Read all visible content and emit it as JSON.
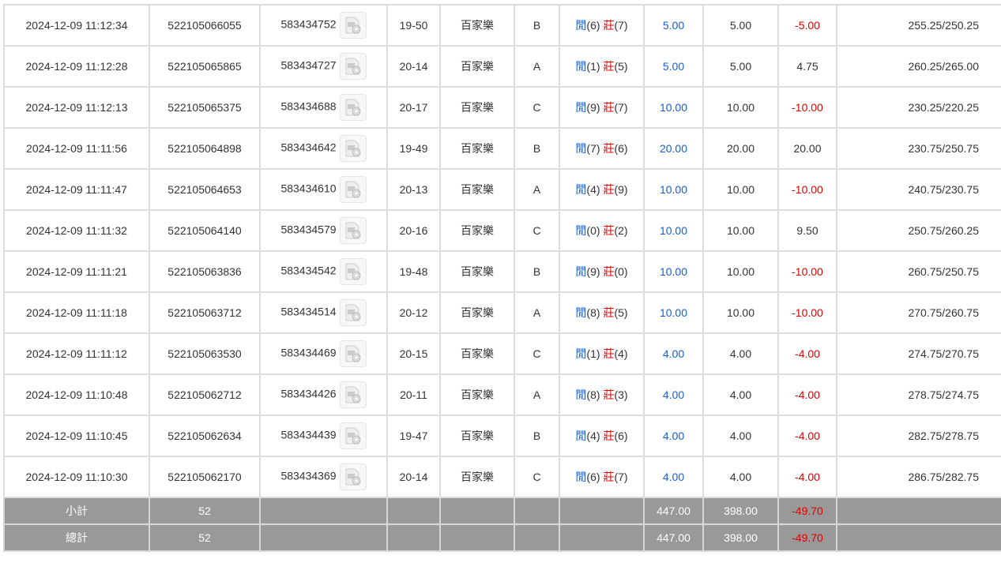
{
  "rows": [
    {
      "time": "2024-12-09 11:12:34",
      "bet_id": "522105066055",
      "round_id": "583434752",
      "table": "19-50",
      "game": "百家樂",
      "seat": "B",
      "player_label": "閒",
      "player": "(6)",
      "banker_label": "莊",
      "banker": "(7)",
      "bet": "5.00",
      "valid": "5.00",
      "win": "-5.00",
      "balance": "255.25/250.25"
    },
    {
      "time": "2024-12-09 11:12:28",
      "bet_id": "522105065865",
      "round_id": "583434727",
      "table": "20-14",
      "game": "百家樂",
      "seat": "A",
      "player_label": "閒",
      "player": "(1)",
      "banker_label": "莊",
      "banker": "(5)",
      "bet": "5.00",
      "valid": "5.00",
      "win": "4.75",
      "balance": "260.25/265.00"
    },
    {
      "time": "2024-12-09 11:12:13",
      "bet_id": "522105065375",
      "round_id": "583434688",
      "table": "20-17",
      "game": "百家樂",
      "seat": "C",
      "player_label": "閒",
      "player": "(9)",
      "banker_label": "莊",
      "banker": "(7)",
      "bet": "10.00",
      "valid": "10.00",
      "win": "-10.00",
      "balance": "230.25/220.25"
    },
    {
      "time": "2024-12-09 11:11:56",
      "bet_id": "522105064898",
      "round_id": "583434642",
      "table": "19-49",
      "game": "百家樂",
      "seat": "B",
      "player_label": "閒",
      "player": "(7)",
      "banker_label": "莊",
      "banker": "(6)",
      "bet": "20.00",
      "valid": "20.00",
      "win": "20.00",
      "balance": "230.75/250.75"
    },
    {
      "time": "2024-12-09 11:11:47",
      "bet_id": "522105064653",
      "round_id": "583434610",
      "table": "20-13",
      "game": "百家樂",
      "seat": "A",
      "player_label": "閒",
      "player": "(4)",
      "banker_label": "莊",
      "banker": "(9)",
      "bet": "10.00",
      "valid": "10.00",
      "win": "-10.00",
      "balance": "240.75/230.75"
    },
    {
      "time": "2024-12-09 11:11:32",
      "bet_id": "522105064140",
      "round_id": "583434579",
      "table": "20-16",
      "game": "百家樂",
      "seat": "C",
      "player_label": "閒",
      "player": "(0)",
      "banker_label": "莊",
      "banker": "(2)",
      "bet": "10.00",
      "valid": "10.00",
      "win": "9.50",
      "balance": "250.75/260.25"
    },
    {
      "time": "2024-12-09 11:11:21",
      "bet_id": "522105063836",
      "round_id": "583434542",
      "table": "19-48",
      "game": "百家樂",
      "seat": "B",
      "player_label": "閒",
      "player": "(9)",
      "banker_label": "莊",
      "banker": "(0)",
      "bet": "10.00",
      "valid": "10.00",
      "win": "-10.00",
      "balance": "260.75/250.75"
    },
    {
      "time": "2024-12-09 11:11:18",
      "bet_id": "522105063712",
      "round_id": "583434514",
      "table": "20-12",
      "game": "百家樂",
      "seat": "A",
      "player_label": "閒",
      "player": "(8)",
      "banker_label": "莊",
      "banker": "(5)",
      "bet": "10.00",
      "valid": "10.00",
      "win": "-10.00",
      "balance": "270.75/260.75"
    },
    {
      "time": "2024-12-09 11:11:12",
      "bet_id": "522105063530",
      "round_id": "583434469",
      "table": "20-15",
      "game": "百家樂",
      "seat": "C",
      "player_label": "閒",
      "player": "(1)",
      "banker_label": "莊",
      "banker": "(4)",
      "bet": "4.00",
      "valid": "4.00",
      "win": "-4.00",
      "balance": "274.75/270.75"
    },
    {
      "time": "2024-12-09 11:10:48",
      "bet_id": "522105062712",
      "round_id": "583434426",
      "table": "20-11",
      "game": "百家樂",
      "seat": "A",
      "player_label": "閒",
      "player": "(8)",
      "banker_label": "莊",
      "banker": "(3)",
      "bet": "4.00",
      "valid": "4.00",
      "win": "-4.00",
      "balance": "278.75/274.75"
    },
    {
      "time": "2024-12-09 11:10:45",
      "bet_id": "522105062634",
      "round_id": "583434439",
      "table": "19-47",
      "game": "百家樂",
      "seat": "B",
      "player_label": "閒",
      "player": "(4)",
      "banker_label": "莊",
      "banker": "(6)",
      "bet": "4.00",
      "valid": "4.00",
      "win": "-4.00",
      "balance": "282.75/278.75"
    },
    {
      "time": "2024-12-09 11:10:30",
      "bet_id": "522105062170",
      "round_id": "583434369",
      "table": "20-14",
      "game": "百家樂",
      "seat": "C",
      "player_label": "閒",
      "player": "(6)",
      "banker_label": "莊",
      "banker": "(7)",
      "bet": "4.00",
      "valid": "4.00",
      "win": "-4.00",
      "balance": "286.75/282.75"
    }
  ],
  "summary": [
    {
      "label": "小計",
      "count": "52",
      "bet": "447.00",
      "valid": "398.00",
      "win": "-49.70"
    },
    {
      "label": "總計",
      "count": "52",
      "bet": "447.00",
      "valid": "398.00",
      "win": "-49.70"
    }
  ],
  "colors": {
    "player": "#1a5fd6",
    "banker": "#e00000",
    "negative": "#e00000",
    "summary_bg": "#999999"
  },
  "icons": {
    "replay": "video-replay-icon"
  }
}
